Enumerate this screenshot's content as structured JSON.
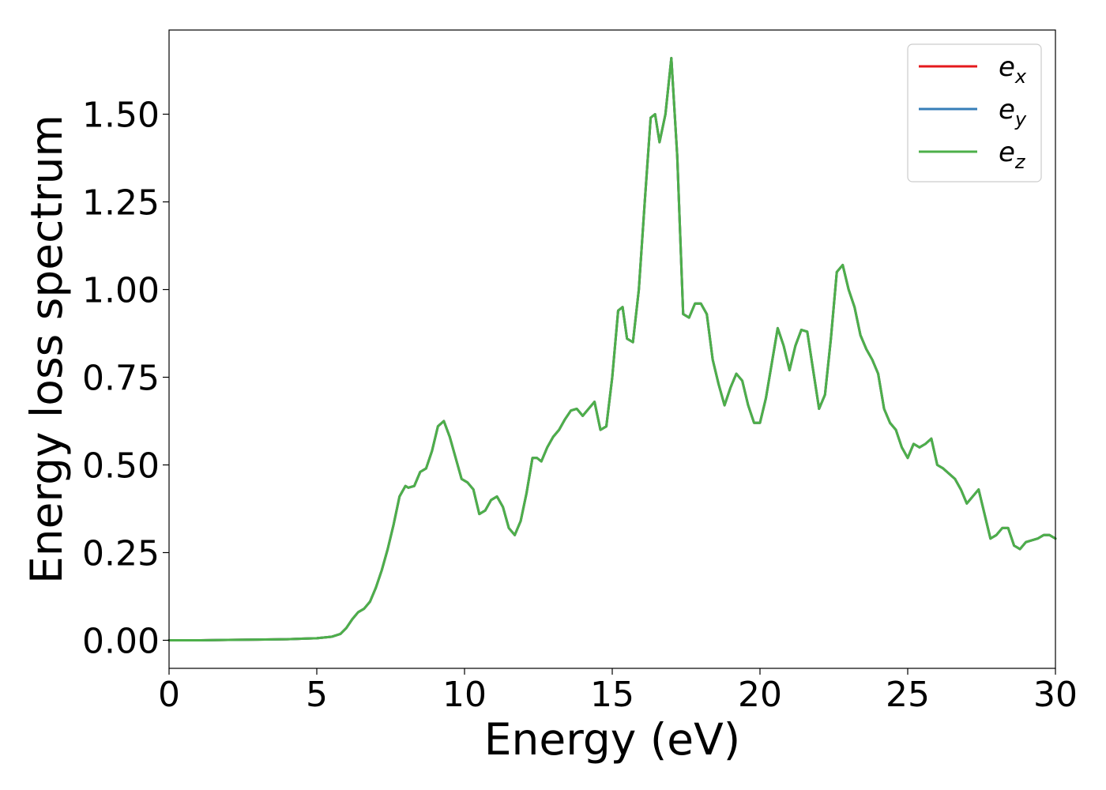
{
  "chart_data": {
    "type": "line",
    "xlabel": "Energy (eV)",
    "ylabel": "Energy loss spectrum",
    "xlim": [
      0,
      30
    ],
    "ylim": [
      -0.08,
      1.74
    ],
    "x_ticks": [
      "0",
      "5",
      "10",
      "15",
      "20",
      "25",
      "30"
    ],
    "y_ticks": [
      "0.00",
      "0.25",
      "0.50",
      "0.75",
      "1.00",
      "1.25",
      "1.50"
    ],
    "x_tick_values": [
      0,
      5,
      10,
      15,
      20,
      25,
      30
    ],
    "y_tick_values": [
      0,
      0.25,
      0.5,
      0.75,
      1.0,
      1.25,
      1.5
    ],
    "grid": false,
    "legend_position": "top-right",
    "series": [
      {
        "name": "e",
        "subscript": "x",
        "color": "#e41a1c"
      },
      {
        "name": "e",
        "subscript": "y",
        "color": "#377eb8"
      },
      {
        "name": "e",
        "subscript": "z",
        "color": "#4daf4a"
      }
    ],
    "x": [
      0,
      1,
      2,
      3,
      4,
      5,
      5.5,
      5.8,
      6.0,
      6.2,
      6.4,
      6.6,
      6.8,
      7.0,
      7.2,
      7.4,
      7.6,
      7.8,
      8.0,
      8.1,
      8.3,
      8.5,
      8.7,
      8.9,
      9.1,
      9.3,
      9.5,
      9.7,
      9.9,
      10.1,
      10.3,
      10.5,
      10.7,
      10.9,
      11.1,
      11.3,
      11.5,
      11.7,
      11.9,
      12.1,
      12.3,
      12.45,
      12.6,
      12.8,
      13.0,
      13.2,
      13.4,
      13.6,
      13.8,
      14.0,
      14.2,
      14.4,
      14.6,
      14.8,
      15.0,
      15.2,
      15.35,
      15.5,
      15.7,
      15.9,
      16.1,
      16.3,
      16.45,
      16.6,
      16.8,
      17.0,
      17.2,
      17.4,
      17.6,
      17.8,
      18.0,
      18.2,
      18.4,
      18.6,
      18.8,
      19.0,
      19.2,
      19.4,
      19.6,
      19.8,
      20.0,
      20.2,
      20.4,
      20.6,
      20.8,
      21.0,
      21.2,
      21.4,
      21.6,
      21.8,
      22.0,
      22.2,
      22.4,
      22.6,
      22.8,
      23.0,
      23.2,
      23.4,
      23.6,
      23.8,
      24.0,
      24.2,
      24.4,
      24.6,
      24.8,
      25.0,
      25.2,
      25.4,
      25.6,
      25.8,
      26.0,
      26.2,
      26.4,
      26.6,
      26.8,
      27.0,
      27.2,
      27.4,
      27.6,
      27.8,
      28.0,
      28.2,
      28.4,
      28.6,
      28.8,
      29.0,
      29.2,
      29.4,
      29.6,
      29.8,
      30.0
    ],
    "y": [
      0.0,
      0.0,
      0.001,
      0.002,
      0.003,
      0.006,
      0.01,
      0.018,
      0.035,
      0.06,
      0.08,
      0.09,
      0.11,
      0.15,
      0.2,
      0.26,
      0.33,
      0.41,
      0.44,
      0.435,
      0.44,
      0.48,
      0.49,
      0.54,
      0.61,
      0.625,
      0.58,
      0.52,
      0.46,
      0.45,
      0.43,
      0.36,
      0.37,
      0.4,
      0.41,
      0.38,
      0.32,
      0.3,
      0.34,
      0.42,
      0.52,
      0.52,
      0.51,
      0.55,
      0.58,
      0.6,
      0.63,
      0.655,
      0.66,
      0.64,
      0.66,
      0.68,
      0.6,
      0.61,
      0.75,
      0.94,
      0.95,
      0.86,
      0.85,
      1.0,
      1.25,
      1.49,
      1.5,
      1.42,
      1.5,
      1.66,
      1.38,
      0.93,
      0.92,
      0.96,
      0.96,
      0.93,
      0.8,
      0.73,
      0.67,
      0.72,
      0.76,
      0.74,
      0.67,
      0.62,
      0.62,
      0.69,
      0.79,
      0.89,
      0.84,
      0.77,
      0.84,
      0.885,
      0.88,
      0.77,
      0.66,
      0.7,
      0.86,
      1.05,
      1.07,
      1.0,
      0.95,
      0.87,
      0.83,
      0.8,
      0.76,
      0.66,
      0.62,
      0.6,
      0.55,
      0.52,
      0.56,
      0.55,
      0.56,
      0.575,
      0.5,
      0.49,
      0.475,
      0.46,
      0.43,
      0.39,
      0.41,
      0.43,
      0.36,
      0.29,
      0.3,
      0.32,
      0.32,
      0.27,
      0.26,
      0.28,
      0.285,
      0.29,
      0.3,
      0.3,
      0.29
    ]
  }
}
